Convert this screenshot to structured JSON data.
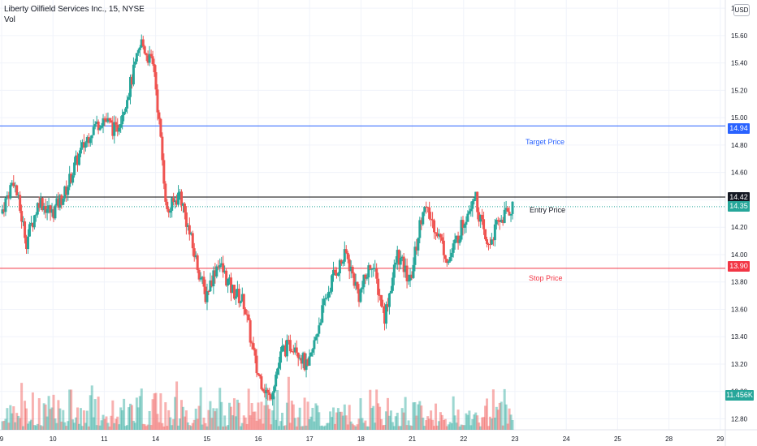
{
  "header": {
    "title": "Liberty Oilfield Services Inc., 15, NYSE",
    "volume_label": "Vol"
  },
  "currency_badge": "USD",
  "levels": {
    "target": {
      "value": 14.94,
      "tag": "14.94",
      "label": "Target Price",
      "color": "#2962ff"
    },
    "entry": {
      "value": 14.42,
      "tag": "14.42",
      "label": "Entry Price",
      "color": "#000000"
    },
    "last": {
      "value": 14.35,
      "tag": "14.35",
      "color": "#26a69a"
    },
    "stop": {
      "value": 13.9,
      "tag": "13.90",
      "label": "Stop Price",
      "color": "#f23645"
    }
  },
  "volume_tag": "11.456K",
  "colors": {
    "up": "#26a69a",
    "down": "#ef5350",
    "grid": "#f0f3fa"
  },
  "chart_data": {
    "type": "candlestick",
    "symbol": "Liberty Oilfield Services Inc.",
    "interval": "15",
    "exchange": "NYSE",
    "ylim": [
      12.72,
      15.86
    ],
    "y_ticks": [
      "15.80",
      "15.60",
      "15.40",
      "15.20",
      "15.00",
      "14.80",
      "14.60",
      "14.40",
      "14.20",
      "14.00",
      "13.80",
      "13.60",
      "13.40",
      "13.20",
      "13.00",
      "12.80"
    ],
    "x_ticks": [
      "9",
      "10",
      "11",
      "14",
      "15",
      "16",
      "17",
      "18",
      "21",
      "22",
      "23",
      "24",
      "25",
      "28",
      "29"
    ],
    "anchors": [
      {
        "day": "9",
        "p": 14.3
      },
      {
        "day": "9",
        "p": 14.55
      },
      {
        "day": "9",
        "p": 14.1
      },
      {
        "day": "9",
        "p": 14.4
      },
      {
        "day": "10",
        "p": 14.3
      },
      {
        "day": "10",
        "p": 14.45
      },
      {
        "day": "10",
        "p": 14.7
      },
      {
        "day": "10",
        "p": 14.9
      },
      {
        "day": "11",
        "p": 15.0
      },
      {
        "day": "11",
        "p": 14.9
      },
      {
        "day": "11",
        "p": 15.2
      },
      {
        "day": "11",
        "p": 15.55
      },
      {
        "day": "11",
        "p": 15.35
      },
      {
        "day": "14",
        "p": 14.3
      },
      {
        "day": "14",
        "p": 14.45
      },
      {
        "day": "14",
        "p": 14.05
      },
      {
        "day": "15",
        "p": 13.7
      },
      {
        "day": "15",
        "p": 13.95
      },
      {
        "day": "15",
        "p": 13.75
      },
      {
        "day": "15",
        "p": 13.65
      },
      {
        "day": "16",
        "p": 13.15
      },
      {
        "day": "16",
        "p": 12.95
      },
      {
        "day": "16",
        "p": 13.3
      },
      {
        "day": "16",
        "p": 13.35
      },
      {
        "day": "17",
        "p": 13.15
      },
      {
        "day": "17",
        "p": 13.55
      },
      {
        "day": "17",
        "p": 13.85
      },
      {
        "day": "17",
        "p": 14.0
      },
      {
        "day": "18",
        "p": 13.7
      },
      {
        "day": "18",
        "p": 13.95
      },
      {
        "day": "18",
        "p": 13.55
      },
      {
        "day": "18",
        "p": 14.0
      },
      {
        "day": "21",
        "p": 13.8
      },
      {
        "day": "21",
        "p": 14.35
      },
      {
        "day": "21",
        "p": 14.2
      },
      {
        "day": "21",
        "p": 13.95
      },
      {
        "day": "22",
        "p": 14.2
      },
      {
        "day": "22",
        "p": 14.45
      },
      {
        "day": "22",
        "p": 14.05
      },
      {
        "day": "22",
        "p": 14.25
      },
      {
        "day": "23",
        "p": 14.35
      }
    ]
  }
}
